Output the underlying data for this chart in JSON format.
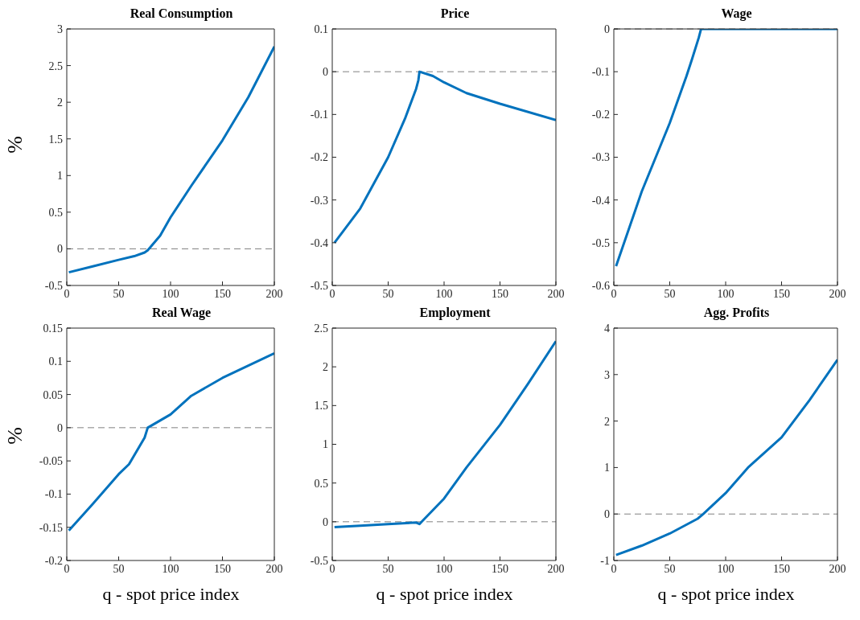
{
  "chart_data": [
    {
      "type": "line",
      "title": "Real Consumption",
      "ylabel": "%",
      "xlim": [
        0,
        200
      ],
      "xticks": [
        0,
        50,
        100,
        150,
        200
      ],
      "ylim": [
        -0.5,
        3
      ],
      "yticks": [
        -0.5,
        0,
        0.5,
        1,
        1.5,
        2,
        2.5,
        3
      ],
      "ref_lines": [
        {
          "axis": "y",
          "value": 0,
          "line_style": "dashed",
          "color": "#808080"
        }
      ],
      "series": [
        {
          "color": "#0072bd",
          "x": [
            2,
            25,
            50,
            65,
            75,
            78,
            90,
            100,
            120,
            150,
            175,
            200
          ],
          "values": [
            -0.32,
            -0.24,
            -0.15,
            -0.1,
            -0.05,
            -0.02,
            0.18,
            0.43,
            0.86,
            1.48,
            2.07,
            2.76
          ]
        }
      ]
    },
    {
      "type": "line",
      "title": "Price",
      "xlim": [
        0,
        200
      ],
      "xticks": [
        0,
        50,
        100,
        150,
        200
      ],
      "ylim": [
        -0.5,
        0.1
      ],
      "yticks": [
        -0.5,
        -0.4,
        -0.3,
        -0.2,
        -0.1,
        0,
        0.1
      ],
      "ref_lines": [
        {
          "axis": "y",
          "value": 0,
          "line_style": "dashed",
          "color": "#808080"
        }
      ],
      "series": [
        {
          "color": "#0072bd",
          "x": [
            2,
            25,
            50,
            65,
            75,
            77,
            78,
            90,
            100,
            120,
            150,
            200
          ],
          "values": [
            -0.4,
            -0.32,
            -0.2,
            -0.11,
            -0.04,
            -0.02,
            0,
            -0.01,
            -0.025,
            -0.05,
            -0.075,
            -0.113
          ]
        }
      ]
    },
    {
      "type": "line",
      "title": "Wage",
      "xlim": [
        0,
        200
      ],
      "xticks": [
        0,
        50,
        100,
        150,
        200
      ],
      "ylim": [
        -0.6,
        0
      ],
      "yticks": [
        -0.6,
        -0.5,
        -0.4,
        -0.3,
        -0.2,
        -0.1,
        0
      ],
      "ref_lines": [
        {
          "axis": "y",
          "value": 0,
          "line_style": "dashed",
          "color": "#808080"
        }
      ],
      "series": [
        {
          "color": "#0072bd",
          "x": [
            2,
            25,
            50,
            65,
            70,
            76,
            78,
            100,
            150,
            200
          ],
          "values": [
            -0.555,
            -0.38,
            -0.22,
            -0.11,
            -0.07,
            -0.02,
            0,
            0,
            0,
            0
          ]
        }
      ]
    },
    {
      "type": "line",
      "title": "Real Wage",
      "ylabel": "%",
      "xlabel": "q - spot price index",
      "xlim": [
        0,
        200
      ],
      "xticks": [
        0,
        50,
        100,
        150,
        200
      ],
      "ylim": [
        -0.2,
        0.15
      ],
      "yticks": [
        -0.2,
        -0.15,
        -0.1,
        -0.05,
        0,
        0.05,
        0.1,
        0.15
      ],
      "ref_lines": [
        {
          "axis": "y",
          "value": 0,
          "line_style": "dashed",
          "color": "#808080"
        }
      ],
      "series": [
        {
          "color": "#0072bd",
          "x": [
            2,
            25,
            50,
            60,
            75,
            78,
            100,
            120,
            150,
            200
          ],
          "values": [
            -0.155,
            -0.115,
            -0.07,
            -0.055,
            -0.015,
            0,
            0.02,
            0.048,
            0.075,
            0.112
          ]
        }
      ]
    },
    {
      "type": "line",
      "title": "Employment",
      "xlabel": "q - spot price index",
      "xlim": [
        0,
        200
      ],
      "xticks": [
        0,
        50,
        100,
        150,
        200
      ],
      "ylim": [
        -0.5,
        2.5
      ],
      "yticks": [
        -0.5,
        0,
        0.5,
        1,
        1.5,
        2,
        2.5
      ],
      "ref_lines": [
        {
          "axis": "y",
          "value": 0,
          "line_style": "dashed",
          "color": "#808080"
        }
      ],
      "series": [
        {
          "color": "#0072bd",
          "x": [
            2,
            25,
            50,
            75,
            78,
            80,
            100,
            120,
            150,
            175,
            200
          ],
          "values": [
            -0.07,
            -0.05,
            -0.03,
            -0.01,
            -0.03,
            0,
            0.3,
            0.7,
            1.25,
            1.78,
            2.33
          ]
        }
      ]
    },
    {
      "type": "line",
      "title": "Agg. Profits",
      "xlabel": "q - spot price index",
      "xlim": [
        0,
        200
      ],
      "xticks": [
        0,
        50,
        100,
        150,
        200
      ],
      "ylim": [
        -1,
        4
      ],
      "yticks": [
        -1,
        0,
        1,
        2,
        3,
        4
      ],
      "ref_lines": [
        {
          "axis": "y",
          "value": 0,
          "line_style": "dashed",
          "color": "#808080"
        }
      ],
      "series": [
        {
          "color": "#0072bd",
          "x": [
            2,
            25,
            50,
            75,
            80,
            100,
            120,
            150,
            175,
            200
          ],
          "values": [
            -0.88,
            -0.68,
            -0.42,
            -0.1,
            0,
            0.45,
            1.0,
            1.65,
            2.45,
            3.32
          ]
        }
      ]
    }
  ]
}
